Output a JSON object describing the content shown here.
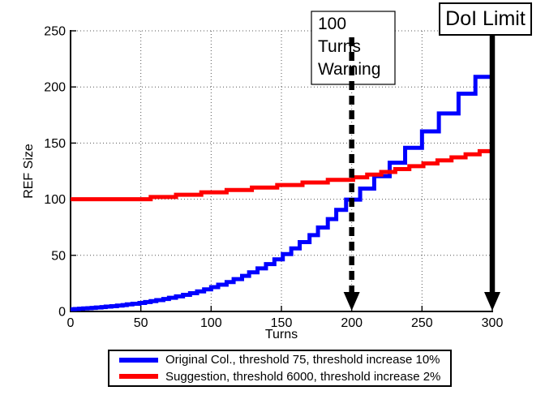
{
  "chart_data": {
    "type": "line",
    "title": "",
    "xlabel": "Turns",
    "ylabel": "REF Size",
    "xlim": [
      0,
      300
    ],
    "ylim": [
      0,
      250
    ],
    "xticks": [
      0,
      50,
      100,
      150,
      200,
      250,
      300
    ],
    "yticks": [
      0,
      50,
      100,
      150,
      200,
      250
    ],
    "grid": "dotted",
    "line_shape": "staircase",
    "legend_position": "below-axis",
    "colors": {
      "background": "#ffffff",
      "axis": "#000000",
      "grid": "#555555",
      "annotation_arrow": "#000000",
      "series_blue": "#0000ff",
      "series_red": "#ff0000"
    },
    "series": [
      {
        "name": "Original Col., threshold 75, threshold increase 10%",
        "color": "#0000ff",
        "points": [
          [
            0,
            2
          ],
          [
            3,
            2.2
          ],
          [
            6,
            2.4
          ],
          [
            9,
            2.7
          ],
          [
            12,
            2.9
          ],
          [
            15,
            3.2
          ],
          [
            18,
            3.5
          ],
          [
            22,
            3.9
          ],
          [
            25,
            4.3
          ],
          [
            29,
            4.7
          ],
          [
            33,
            5.2
          ],
          [
            37,
            5.7
          ],
          [
            40,
            6.3
          ],
          [
            44,
            6.9
          ],
          [
            49,
            7.6
          ],
          [
            53,
            8.4
          ],
          [
            57,
            9.2
          ],
          [
            61,
            10.1
          ],
          [
            66,
            11.1
          ],
          [
            70,
            12.2
          ],
          [
            75,
            13.5
          ],
          [
            80,
            14.8
          ],
          [
            85,
            16.3
          ],
          [
            90,
            17.9
          ],
          [
            95,
            19.7
          ],
          [
            100,
            21.7
          ],
          [
            105,
            23.8
          ],
          [
            111,
            26.2
          ],
          [
            116,
            28.8
          ],
          [
            122,
            31.7
          ],
          [
            127,
            34.9
          ],
          [
            133,
            38.4
          ],
          [
            139,
            42.2
          ],
          [
            145,
            46.4
          ],
          [
            151,
            51.1
          ],
          [
            157,
            56.2
          ],
          [
            163,
            61.8
          ],
          [
            170,
            68
          ],
          [
            176,
            74.8
          ],
          [
            183,
            82.3
          ],
          [
            189,
            90.5
          ],
          [
            196,
            99.6
          ],
          [
            206,
            109.5
          ],
          [
            216,
            120.5
          ],
          [
            227,
            132.5
          ],
          [
            238,
            145.8
          ],
          [
            250,
            160.4
          ],
          [
            262,
            176.4
          ],
          [
            276,
            194
          ],
          [
            288,
            209
          ]
        ]
      },
      {
        "name": "Suggestion, threshold 6000, threshold increase 2%",
        "color": "#ff0000",
        "points": [
          [
            0,
            100
          ],
          [
            57,
            102
          ],
          [
            75,
            104
          ],
          [
            93,
            106.1
          ],
          [
            111,
            108.2
          ],
          [
            129,
            110.4
          ],
          [
            147,
            112.6
          ],
          [
            165,
            114.9
          ],
          [
            183,
            117.2
          ],
          [
            201,
            119.5
          ],
          [
            211,
            121.9
          ],
          [
            221,
            124.3
          ],
          [
            231,
            126.8
          ],
          [
            241,
            129.4
          ],
          [
            251,
            131.9
          ],
          [
            261,
            134.6
          ],
          [
            271,
            137.3
          ],
          [
            281,
            140
          ],
          [
            291,
            142.8
          ]
        ]
      }
    ],
    "annotations": [
      {
        "id": "turns-warning",
        "text": "100 Turns Warning",
        "lines": [
          "100",
          "Turns",
          "Warning"
        ],
        "x": 200,
        "arrow": "dashed-vertical-down"
      },
      {
        "id": "doi-limit",
        "text": "DoI Limit",
        "lines": [
          "DoI Limit"
        ],
        "x": 300,
        "arrow": "solid-vertical-down"
      }
    ]
  }
}
